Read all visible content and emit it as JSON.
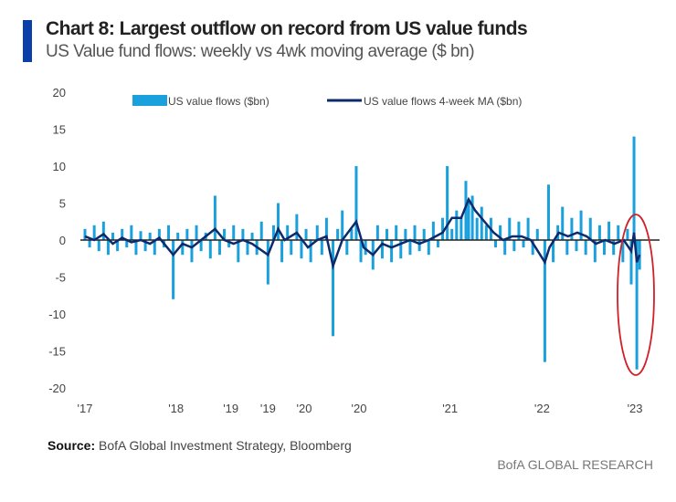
{
  "header": {
    "title": "Chart 8: Largest outflow on record from US value funds",
    "subtitle": "US Value fund flows: weekly vs 4wk moving average ($ bn)"
  },
  "footer": {
    "source_label": "Source:",
    "source_text": "BofA Global Investment Strategy, Bloomberg",
    "brand": "BofA GLOBAL RESEARCH"
  },
  "chart_data": {
    "type": "bar+line",
    "title": "Chart 8: Largest outflow on record from US value funds",
    "ylim": [
      -20,
      20
    ],
    "yticks": [
      20,
      15,
      10,
      5,
      0,
      -5,
      -10,
      -15,
      -20
    ],
    "xticks": [
      {
        "label": "'17",
        "t": 2017.0
      },
      {
        "label": "'18",
        "t": 2017.98
      },
      {
        "label": "'19",
        "t": 2018.57
      },
      {
        "label": "'19",
        "t": 2018.97
      },
      {
        "label": "'20",
        "t": 2019.36
      },
      {
        "label": "'20",
        "t": 2019.95
      },
      {
        "label": "'21",
        "t": 2020.93
      },
      {
        "label": "'22",
        "t": 2021.92
      },
      {
        "label": "'23",
        "t": 2022.92
      }
    ],
    "xlim": [
      2016.95,
      2023.25
    ],
    "legend": {
      "placement": "top",
      "items": [
        "US value flows ($bn)",
        "US value flows 4-week MA ($bn)"
      ]
    },
    "colors": {
      "flows": "#1aa0dc",
      "ma": "#0d2a6b",
      "annotation": "#d0202a"
    },
    "annotation": "red ellipse around late-2022/early-2023 record outflow",
    "series": [
      {
        "name": "US value flows ($bn)",
        "type": "bar",
        "points": [
          [
            2017.0,
            1.5
          ],
          [
            2017.05,
            -1
          ],
          [
            2017.1,
            2
          ],
          [
            2017.15,
            -1.5
          ],
          [
            2017.2,
            2.5
          ],
          [
            2017.25,
            -2
          ],
          [
            2017.3,
            1
          ],
          [
            2017.35,
            -1.5
          ],
          [
            2017.4,
            1.5
          ],
          [
            2017.45,
            -1
          ],
          [
            2017.5,
            2
          ],
          [
            2017.55,
            -2
          ],
          [
            2017.6,
            1.2
          ],
          [
            2017.65,
            -1.5
          ],
          [
            2017.7,
            1
          ],
          [
            2017.75,
            -2
          ],
          [
            2017.8,
            1.5
          ],
          [
            2017.85,
            -1
          ],
          [
            2017.9,
            2
          ],
          [
            2017.95,
            -8
          ],
          [
            2018.0,
            1
          ],
          [
            2018.05,
            -2
          ],
          [
            2018.1,
            1.5
          ],
          [
            2018.15,
            -3
          ],
          [
            2018.2,
            2
          ],
          [
            2018.25,
            -1.5
          ],
          [
            2018.3,
            1
          ],
          [
            2018.35,
            -2.5
          ],
          [
            2018.4,
            6
          ],
          [
            2018.45,
            -2
          ],
          [
            2018.5,
            1.5
          ],
          [
            2018.55,
            -1
          ],
          [
            2018.6,
            2
          ],
          [
            2018.65,
            -3
          ],
          [
            2018.7,
            1.5
          ],
          [
            2018.75,
            -2
          ],
          [
            2018.8,
            1
          ],
          [
            2018.85,
            -2
          ],
          [
            2018.9,
            2.5
          ],
          [
            2018.97,
            -6
          ],
          [
            2019.03,
            2
          ],
          [
            2019.08,
            5
          ],
          [
            2019.12,
            -3
          ],
          [
            2019.18,
            2
          ],
          [
            2019.22,
            -2
          ],
          [
            2019.28,
            3.5
          ],
          [
            2019.33,
            -2.5
          ],
          [
            2019.38,
            1.5
          ],
          [
            2019.43,
            -3
          ],
          [
            2019.5,
            2
          ],
          [
            2019.55,
            -2
          ],
          [
            2019.6,
            3
          ],
          [
            2019.67,
            -13
          ],
          [
            2019.72,
            1.5
          ],
          [
            2019.77,
            4
          ],
          [
            2019.82,
            -2
          ],
          [
            2019.87,
            1.5
          ],
          [
            2019.92,
            10
          ],
          [
            2019.97,
            -3
          ],
          [
            2020.02,
            -2
          ],
          [
            2020.1,
            -4
          ],
          [
            2020.15,
            2
          ],
          [
            2020.2,
            -2.5
          ],
          [
            2020.25,
            1.5
          ],
          [
            2020.3,
            -3
          ],
          [
            2020.35,
            2
          ],
          [
            2020.4,
            -2.5
          ],
          [
            2020.45,
            1.5
          ],
          [
            2020.5,
            -2
          ],
          [
            2020.55,
            2
          ],
          [
            2020.6,
            -1.5
          ],
          [
            2020.65,
            1.5
          ],
          [
            2020.7,
            -2
          ],
          [
            2020.75,
            2.5
          ],
          [
            2020.8,
            -1
          ],
          [
            2020.85,
            3
          ],
          [
            2020.9,
            10
          ],
          [
            2020.95,
            1.5
          ],
          [
            2021.0,
            4
          ],
          [
            2021.05,
            3
          ],
          [
            2021.1,
            8
          ],
          [
            2021.13,
            5.5
          ],
          [
            2021.17,
            6
          ],
          [
            2021.22,
            3
          ],
          [
            2021.27,
            4.5
          ],
          [
            2021.32,
            2
          ],
          [
            2021.37,
            3
          ],
          [
            2021.42,
            -1
          ],
          [
            2021.47,
            2
          ],
          [
            2021.52,
            -2
          ],
          [
            2021.57,
            3
          ],
          [
            2021.62,
            -1.5
          ],
          [
            2021.67,
            2.5
          ],
          [
            2021.72,
            -1
          ],
          [
            2021.77,
            3
          ],
          [
            2021.82,
            -2
          ],
          [
            2021.87,
            1.5
          ],
          [
            2021.95,
            -16.5
          ],
          [
            2021.99,
            7.5
          ],
          [
            2022.04,
            -3
          ],
          [
            2022.09,
            2
          ],
          [
            2022.14,
            4.5
          ],
          [
            2022.19,
            -2
          ],
          [
            2022.24,
            3
          ],
          [
            2022.29,
            -1.5
          ],
          [
            2022.34,
            4
          ],
          [
            2022.39,
            -2
          ],
          [
            2022.44,
            3
          ],
          [
            2022.49,
            -3
          ],
          [
            2022.54,
            2
          ],
          [
            2022.59,
            -2
          ],
          [
            2022.64,
            2.5
          ],
          [
            2022.69,
            -2
          ],
          [
            2022.74,
            2
          ],
          [
            2022.79,
            -3
          ],
          [
            2022.84,
            1.5
          ],
          [
            2022.88,
            -6
          ],
          [
            2022.91,
            14
          ],
          [
            2022.94,
            -17.5
          ],
          [
            2022.97,
            -4
          ]
        ]
      },
      {
        "name": "US value flows 4-week MA ($bn)",
        "type": "line",
        "points": [
          [
            2017.0,
            0.5
          ],
          [
            2017.1,
            0
          ],
          [
            2017.2,
            0.8
          ],
          [
            2017.3,
            -0.5
          ],
          [
            2017.4,
            0.3
          ],
          [
            2017.5,
            -0.3
          ],
          [
            2017.6,
            0
          ],
          [
            2017.7,
            -0.5
          ],
          [
            2017.8,
            0.3
          ],
          [
            2017.95,
            -2
          ],
          [
            2018.05,
            -0.5
          ],
          [
            2018.15,
            -1
          ],
          [
            2018.25,
            0
          ],
          [
            2018.4,
            1.5
          ],
          [
            2018.5,
            0
          ],
          [
            2018.6,
            -0.5
          ],
          [
            2018.7,
            0
          ],
          [
            2018.8,
            -0.5
          ],
          [
            2018.97,
            -2
          ],
          [
            2019.08,
            1.5
          ],
          [
            2019.15,
            0
          ],
          [
            2019.28,
            1
          ],
          [
            2019.4,
            -1
          ],
          [
            2019.5,
            0
          ],
          [
            2019.6,
            0.5
          ],
          [
            2019.67,
            -3.5
          ],
          [
            2019.77,
            0
          ],
          [
            2019.92,
            2.5
          ],
          [
            2020.0,
            -1
          ],
          [
            2020.1,
            -2
          ],
          [
            2020.2,
            -0.5
          ],
          [
            2020.3,
            -1
          ],
          [
            2020.4,
            -0.5
          ],
          [
            2020.5,
            0
          ],
          [
            2020.6,
            -0.5
          ],
          [
            2020.7,
            0
          ],
          [
            2020.85,
            1
          ],
          [
            2020.95,
            3
          ],
          [
            2021.05,
            3
          ],
          [
            2021.13,
            5.5
          ],
          [
            2021.2,
            4
          ],
          [
            2021.3,
            2.5
          ],
          [
            2021.4,
            1
          ],
          [
            2021.5,
            0
          ],
          [
            2021.6,
            0.5
          ],
          [
            2021.7,
            0.5
          ],
          [
            2021.8,
            0
          ],
          [
            2021.95,
            -3
          ],
          [
            2022.0,
            -1
          ],
          [
            2022.1,
            1
          ],
          [
            2022.2,
            0.5
          ],
          [
            2022.3,
            1
          ],
          [
            2022.4,
            0.5
          ],
          [
            2022.5,
            -0.5
          ],
          [
            2022.6,
            0
          ],
          [
            2022.7,
            -0.5
          ],
          [
            2022.8,
            0
          ],
          [
            2022.88,
            -1.5
          ],
          [
            2022.91,
            1
          ],
          [
            2022.94,
            -3
          ],
          [
            2022.97,
            -2
          ]
        ]
      }
    ]
  }
}
